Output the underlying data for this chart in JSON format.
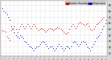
{
  "title": "",
  "background_color": "#d8d8d8",
  "plot_bg_color": "#ffffff",
  "legend_labels": [
    "Outdoor Humidity",
    "Temperature"
  ],
  "legend_colors": [
    "#cc0000",
    "#0000cc"
  ],
  "y_ticks_right": [
    10,
    20,
    30,
    40,
    50,
    60,
    70,
    80,
    90
  ],
  "y_min": 5,
  "y_max": 98,
  "grid_color": "#aaaaaa",
  "marker_size": 0.8,
  "red_points_x": [
    2,
    4,
    6,
    8,
    10,
    12,
    14,
    16,
    18,
    20,
    22,
    24,
    26,
    28,
    30,
    32,
    34,
    36,
    38,
    40,
    42,
    44,
    46,
    48,
    50,
    52,
    54,
    56,
    58,
    60,
    62,
    64,
    66,
    68,
    70,
    72,
    74,
    76,
    78,
    80,
    82,
    84,
    86,
    88,
    90,
    92,
    94,
    96,
    98,
    100,
    102,
    104,
    106,
    108,
    110,
    112,
    114,
    116,
    118,
    120,
    122,
    124,
    126,
    128,
    130,
    132,
    134,
    136,
    138,
    140
  ],
  "red_points_y": [
    48,
    47,
    46,
    38,
    35,
    32,
    48,
    52,
    55,
    50,
    45,
    50,
    55,
    58,
    55,
    52,
    55,
    58,
    55,
    52,
    55,
    58,
    55,
    52,
    48,
    50,
    52,
    50,
    48,
    46,
    48,
    50,
    52,
    50,
    48,
    50,
    52,
    54,
    52,
    50,
    48,
    46,
    44,
    42,
    45,
    50,
    55,
    58,
    55,
    52,
    55,
    60,
    62,
    60,
    58,
    56,
    58,
    60,
    55,
    50,
    48,
    50,
    55,
    58,
    60,
    62,
    65,
    68,
    70,
    65
  ],
  "blue_points_x": [
    2,
    4,
    6,
    8,
    10,
    12,
    14,
    16,
    18,
    20,
    22,
    24,
    26,
    28,
    30,
    32,
    34,
    36,
    38,
    40,
    42,
    44,
    46,
    48,
    50,
    52,
    54,
    56,
    58,
    60,
    62,
    64,
    66,
    68,
    70,
    72,
    74,
    76,
    78,
    80,
    82,
    84,
    86,
    88,
    90,
    92,
    94,
    96,
    98,
    100,
    102,
    104,
    106,
    108,
    110,
    112,
    114,
    116,
    118,
    120,
    122,
    124,
    126,
    128,
    130,
    132,
    134,
    136,
    138,
    140
  ],
  "blue_points_y": [
    85,
    80,
    78,
    75,
    70,
    65,
    55,
    50,
    45,
    40,
    38,
    35,
    40,
    38,
    35,
    30,
    28,
    25,
    22,
    20,
    18,
    15,
    18,
    20,
    22,
    25,
    28,
    30,
    28,
    25,
    22,
    18,
    20,
    22,
    18,
    15,
    18,
    22,
    25,
    22,
    18,
    15,
    18,
    22,
    20,
    18,
    22,
    28,
    30,
    28,
    25,
    22,
    25,
    28,
    30,
    28,
    25,
    20,
    18,
    15,
    20,
    25,
    30,
    35,
    38,
    40,
    45,
    50,
    55,
    60
  ],
  "x_tick_count": 25,
  "x_min": 0,
  "x_max": 142
}
